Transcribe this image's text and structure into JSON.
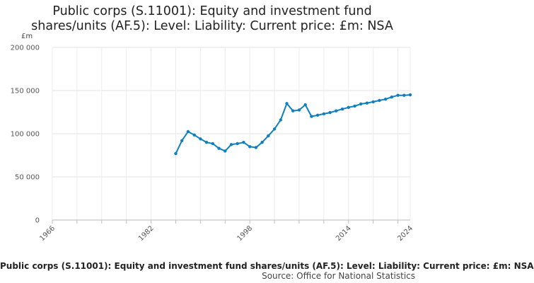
{
  "chart_data": {
    "type": "line",
    "title": "Public corps (S.11001): Equity and investment fund shares/units (AF.5): Level: Liability: Current price: £m: NSA",
    "ylabel": "£m",
    "xlabel": "",
    "xlim": [
      1966,
      2024
    ],
    "ylim": [
      0,
      200000
    ],
    "x_ticks": [
      "1966",
      "1982",
      "1998",
      "2014",
      "2024"
    ],
    "y_ticks": [
      "0",
      "50 000",
      "100 000",
      "150 000",
      "200 000"
    ],
    "grid": true,
    "line_color": "#0f7fbf",
    "series": [
      {
        "x": [
          1986,
          1987,
          1988,
          1989,
          1990,
          1991,
          1992,
          1993,
          1994,
          1995,
          1996,
          1997,
          1998,
          1999,
          2000,
          2001,
          2002,
          2003,
          2004,
          2005,
          2006,
          2007,
          2008,
          2009,
          2010,
          2011,
          2012,
          2013,
          2014,
          2015,
          2016,
          2017,
          2018,
          2019,
          2020,
          2021,
          2022,
          2023,
          2024
        ],
        "values": [
          77000,
          92000,
          102500,
          98500,
          94000,
          90000,
          88500,
          83000,
          80000,
          87500,
          88500,
          90000,
          85000,
          84000,
          90000,
          97500,
          105500,
          116000,
          135000,
          126500,
          127500,
          133500,
          120000,
          121500,
          123000,
          124500,
          126500,
          128500,
          130500,
          132000,
          134500,
          135500,
          137000,
          138500,
          140000,
          142500,
          144500,
          144500,
          145000
        ]
      }
    ]
  },
  "footer": {
    "caption": "Public corps (S.11001): Equity and investment fund shares/units (AF.5): Level: Liability: Current price: £m: NSA",
    "source": "Source: Office for National Statistics"
  }
}
